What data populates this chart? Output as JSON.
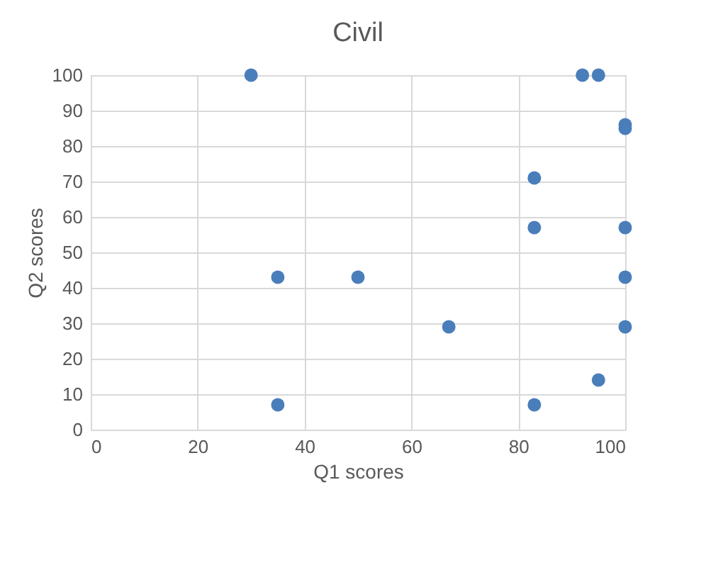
{
  "chart_data": {
    "type": "scatter",
    "title": "Civil",
    "xlabel": "Q1 scores",
    "ylabel": "Q2 scores",
    "x": [
      30,
      92,
      95,
      100,
      100,
      83,
      83,
      100,
      35,
      50,
      100,
      67,
      100,
      95,
      35,
      83
    ],
    "series": [
      {
        "color": "#4a7ebb",
        "values": [
          100,
          100,
          100,
          86,
          85,
          71,
          57,
          57,
          43,
          43,
          43,
          29,
          29,
          14,
          7,
          7
        ]
      }
    ],
    "xlim": [
      0,
      100
    ],
    "xticks": [
      0,
      20,
      40,
      60,
      80,
      100
    ],
    "ylim": [
      0,
      100
    ],
    "yticks": [
      0,
      10,
      20,
      30,
      40,
      50,
      60,
      70,
      80,
      90,
      100
    ],
    "grid": true,
    "legend": false,
    "marker": "circle"
  }
}
